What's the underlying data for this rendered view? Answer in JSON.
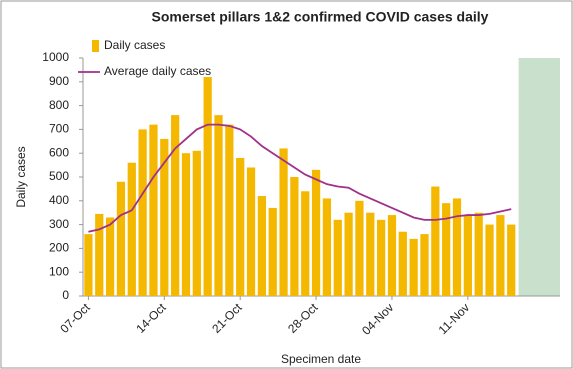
{
  "chart_data": {
    "type": "bar",
    "title": "Somerset pillars 1&2 confirmed COVID cases daily",
    "x_label": "Specimen date",
    "y_label": "Daily cases",
    "categories": [
      "07-Oct",
      null,
      null,
      null,
      null,
      null,
      null,
      "14-Oct",
      null,
      null,
      null,
      null,
      null,
      null,
      "21-Oct",
      null,
      null,
      null,
      null,
      null,
      null,
      "28-Oct",
      null,
      null,
      null,
      null,
      null,
      null,
      "04-Nov",
      null,
      null,
      null,
      null,
      null,
      null,
      "11-Nov",
      null,
      null,
      null,
      null,
      null,
      null,
      null,
      null
    ],
    "series": [
      {
        "name": "Daily cases",
        "type": "bar",
        "color": "#f5b800",
        "values": [
          260,
          345,
          330,
          480,
          560,
          700,
          720,
          660,
          760,
          600,
          610,
          920,
          760,
          720,
          580,
          540,
          420,
          370,
          620,
          500,
          440,
          530,
          410,
          320,
          350,
          400,
          350,
          320,
          340,
          270,
          240,
          260,
          460,
          390,
          410,
          340,
          350,
          300,
          340,
          300,
          null,
          null,
          null,
          null
        ]
      },
      {
        "name": "Average daily cases",
        "type": "line",
        "color": "#a0308a",
        "values": [
          270,
          280,
          300,
          340,
          360,
          430,
          500,
          560,
          620,
          660,
          700,
          720,
          720,
          715,
          700,
          670,
          630,
          600,
          570,
          540,
          510,
          490,
          470,
          460,
          455,
          430,
          410,
          390,
          370,
          350,
          330,
          320,
          320,
          325,
          335,
          340,
          340,
          345,
          355,
          365,
          null,
          null,
          null,
          null
        ]
      }
    ],
    "incomplete_color": "#c8e0cc",
    "ylim": [
      0,
      1000
    ],
    "yticks": [
      0,
      100,
      200,
      300,
      400,
      500,
      600,
      700,
      800,
      900,
      1000
    ],
    "legend": "top-left",
    "grid": false
  }
}
